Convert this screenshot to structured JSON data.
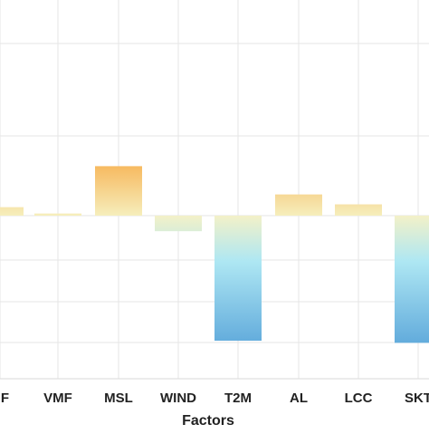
{
  "chart_data": {
    "type": "bar",
    "categories": [
      "HF",
      "VMF",
      "MSL",
      "WIND",
      "T2M",
      "AL",
      "LCC",
      "SKT"
    ],
    "values": [
      0.012,
      0.003,
      0.07,
      -0.022,
      -0.177,
      0.03,
      0.016,
      -0.18
    ],
    "xlabel": "Factors",
    "ylabel": "",
    "ylim": [
      -0.2,
      0.3
    ],
    "grid": true,
    "colors": {
      "positive_base": "#f6eebc",
      "positive_peak": "#f7b65a",
      "negative_base": "#f3f1c8",
      "mid_cyan": "#aee7f3",
      "negative_peak": "#5fa9db",
      "grid": "#e6e6e6",
      "frame": "#d9d9d9"
    }
  }
}
